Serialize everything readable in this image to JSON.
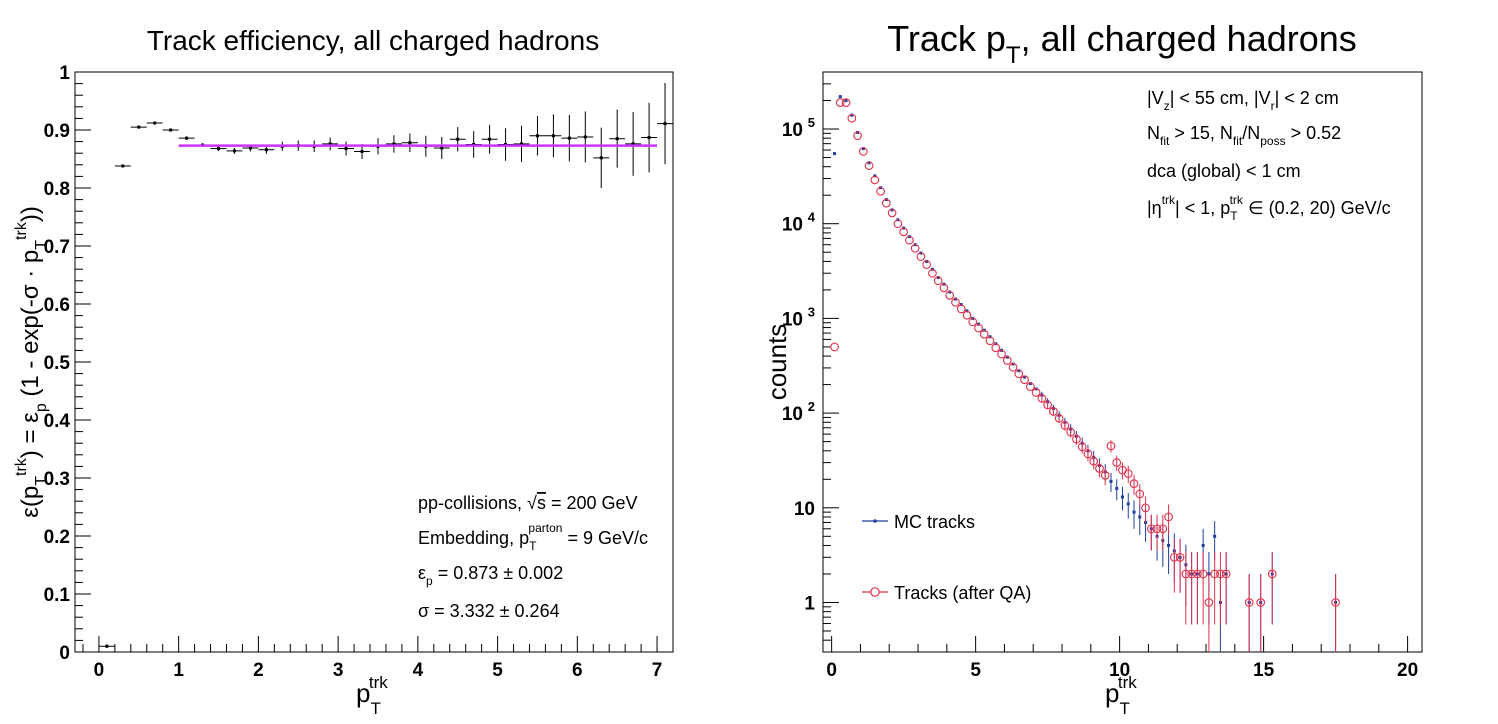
{
  "chart_data": [
    {
      "type": "scatter",
      "title": "Track efficiency, all charged hadrons",
      "xlabel": "p_T^trk",
      "ylabel": "ε(p_T^trk) = ε_p (1 - exp(-σ · p_T^trk))",
      "xlim": [
        -0.3,
        7.2
      ],
      "ylim": [
        0,
        1
      ],
      "x_ticks": [
        0,
        1,
        2,
        3,
        4,
        5,
        6,
        7
      ],
      "y_ticks": [
        0,
        0.1,
        0.2,
        0.3,
        0.4,
        0.5,
        0.6,
        0.7,
        0.8,
        0.9,
        1
      ],
      "grid": false,
      "points": [
        {
          "x": 0.1,
          "y": 0.01,
          "xerr": 0.1,
          "yerr": 0.003
        },
        {
          "x": 0.3,
          "y": 0.838,
          "xerr": 0.1,
          "yerr": 0.002
        },
        {
          "x": 0.5,
          "y": 0.905,
          "xerr": 0.1,
          "yerr": 0.002
        },
        {
          "x": 0.7,
          "y": 0.912,
          "xerr": 0.1,
          "yerr": 0.002
        },
        {
          "x": 0.9,
          "y": 0.9,
          "xerr": 0.1,
          "yerr": 0.002
        },
        {
          "x": 1.1,
          "y": 0.886,
          "xerr": 0.1,
          "yerr": 0.003
        },
        {
          "x": 1.3,
          "y": 0.874,
          "xerr": 0.1,
          "yerr": 0.003
        },
        {
          "x": 1.5,
          "y": 0.868,
          "xerr": 0.1,
          "yerr": 0.004
        },
        {
          "x": 1.7,
          "y": 0.864,
          "xerr": 0.1,
          "yerr": 0.005
        },
        {
          "x": 1.9,
          "y": 0.869,
          "xerr": 0.1,
          "yerr": 0.006
        },
        {
          "x": 2.1,
          "y": 0.866,
          "xerr": 0.1,
          "yerr": 0.007
        },
        {
          "x": 2.3,
          "y": 0.872,
          "xerr": 0.1,
          "yerr": 0.008
        },
        {
          "x": 2.5,
          "y": 0.873,
          "xerr": 0.1,
          "yerr": 0.009
        },
        {
          "x": 2.7,
          "y": 0.872,
          "xerr": 0.1,
          "yerr": 0.01
        },
        {
          "x": 2.9,
          "y": 0.876,
          "xerr": 0.1,
          "yerr": 0.011
        },
        {
          "x": 3.1,
          "y": 0.868,
          "xerr": 0.1,
          "yerr": 0.012
        },
        {
          "x": 3.3,
          "y": 0.863,
          "xerr": 0.1,
          "yerr": 0.013
        },
        {
          "x": 3.5,
          "y": 0.872,
          "xerr": 0.1,
          "yerr": 0.014
        },
        {
          "x": 3.7,
          "y": 0.876,
          "xerr": 0.1,
          "yerr": 0.015
        },
        {
          "x": 3.9,
          "y": 0.878,
          "xerr": 0.1,
          "yerr": 0.016
        },
        {
          "x": 4.1,
          "y": 0.872,
          "xerr": 0.1,
          "yerr": 0.018
        },
        {
          "x": 4.3,
          "y": 0.869,
          "xerr": 0.1,
          "yerr": 0.019
        },
        {
          "x": 4.5,
          "y": 0.884,
          "xerr": 0.1,
          "yerr": 0.021
        },
        {
          "x": 4.7,
          "y": 0.875,
          "xerr": 0.1,
          "yerr": 0.023
        },
        {
          "x": 4.9,
          "y": 0.884,
          "xerr": 0.1,
          "yerr": 0.025
        },
        {
          "x": 5.1,
          "y": 0.875,
          "xerr": 0.1,
          "yerr": 0.028
        },
        {
          "x": 5.3,
          "y": 0.876,
          "xerr": 0.1,
          "yerr": 0.031
        },
        {
          "x": 5.5,
          "y": 0.89,
          "xerr": 0.1,
          "yerr": 0.034
        },
        {
          "x": 5.7,
          "y": 0.89,
          "xerr": 0.1,
          "yerr": 0.037
        },
        {
          "x": 5.9,
          "y": 0.886,
          "xerr": 0.1,
          "yerr": 0.04
        },
        {
          "x": 6.1,
          "y": 0.888,
          "xerr": 0.1,
          "yerr": 0.044
        },
        {
          "x": 6.3,
          "y": 0.852,
          "xerr": 0.1,
          "yerr": 0.052
        },
        {
          "x": 6.5,
          "y": 0.885,
          "xerr": 0.1,
          "yerr": 0.05
        },
        {
          "x": 6.7,
          "y": 0.876,
          "xerr": 0.1,
          "yerr": 0.055
        },
        {
          "x": 6.9,
          "y": 0.887,
          "xerr": 0.1,
          "yerr": 0.06
        },
        {
          "x": 7.1,
          "y": 0.911,
          "xerr": 0.1,
          "yerr": 0.07
        }
      ],
      "fit": {
        "x_start": 1,
        "x_end": 7,
        "value": 0.873,
        "color": "#cc33ff"
      },
      "annotations": [
        "pp-collisions, √s = 200 GeV",
        "Embedding, p_T^parton = 9 GeV/c",
        "ε_p = 0.873 ± 0.002",
        "σ = 3.332 ± 0.264"
      ]
    },
    {
      "type": "scatter",
      "title": "Track p_T, all charged hadrons",
      "xlabel": "p_T^trk",
      "ylabel": "counts",
      "xlim": [
        -0.3,
        20.5
      ],
      "ylim": [
        0.3,
        400000
      ],
      "log_y": true,
      "x_ticks": [
        0,
        5,
        10,
        15,
        20
      ],
      "y_ticks": [
        "1",
        "10",
        "10^2",
        "10^3",
        "10^4",
        "10^5"
      ],
      "grid": false,
      "legend_position": "bottom-left",
      "annotations": [
        "|V_z| < 55 cm, |V_r| < 2 cm",
        "N_fit > 15, N_fit/N_poss > 0.52",
        "dca (global) < 1 cm",
        "|η^trk| < 1, p_T^trk ∈ (0.2, 20) GeV/c"
      ],
      "series": [
        {
          "name": "MC tracks",
          "color": "#1f3e9e",
          "marker": "dot",
          "points": [
            [
              0.1,
              55000
            ],
            [
              0.3,
              220000
            ],
            [
              0.5,
              200000
            ],
            [
              0.7,
              140000
            ],
            [
              0.9,
              92000
            ],
            [
              1.1,
              62000
            ],
            [
              1.3,
              44000
            ],
            [
              1.5,
              32000
            ],
            [
              1.7,
              24000
            ],
            [
              1.9,
              18000
            ],
            [
              2.1,
              14000
            ],
            [
              2.3,
              11000
            ],
            [
              2.5,
              9000
            ],
            [
              2.7,
              7300
            ],
            [
              2.9,
              6000
            ],
            [
              3.1,
              4900
            ],
            [
              3.3,
              4000
            ],
            [
              3.5,
              3300
            ],
            [
              3.7,
              2700
            ],
            [
              3.9,
              2300
            ],
            [
              4.1,
              1900
            ],
            [
              4.3,
              1600
            ],
            [
              4.5,
              1400
            ],
            [
              4.7,
              1200
            ],
            [
              4.9,
              1000
            ],
            [
              5.1,
              870
            ],
            [
              5.3,
              750
            ],
            [
              5.5,
              640
            ],
            [
              5.7,
              540
            ],
            [
              5.9,
              460
            ],
            [
              6.1,
              390
            ],
            [
              6.3,
              330
            ],
            [
              6.5,
              280
            ],
            [
              6.7,
              240
            ],
            [
              6.9,
              205
            ],
            [
              7.1,
              180
            ],
            [
              7.3,
              155
            ],
            [
              7.5,
              132
            ],
            [
              7.7,
              112
            ],
            [
              7.9,
              95
            ],
            [
              8.1,
              80
            ],
            [
              8.3,
              68
            ],
            [
              8.5,
              57
            ],
            [
              8.7,
              48
            ],
            [
              8.9,
              40
            ],
            [
              9.1,
              34
            ],
            [
              9.3,
              28
            ],
            [
              9.5,
              24
            ],
            [
              9.7,
              19
            ],
            [
              9.9,
              16
            ],
            [
              10.1,
              13
            ],
            [
              10.3,
              11
            ],
            [
              10.5,
              9
            ],
            [
              10.7,
              8
            ],
            [
              10.9,
              7
            ],
            [
              11.1,
              6
            ],
            [
              11.3,
              5
            ],
            [
              11.5,
              4.5
            ],
            [
              11.7,
              4
            ],
            [
              11.9,
              3.5
            ],
            [
              12.1,
              3
            ],
            [
              12.3,
              2.5
            ],
            [
              12.5,
              2
            ],
            [
              12.7,
              2
            ],
            [
              12.9,
              4
            ],
            [
              13.1,
              2
            ],
            [
              13.3,
              5
            ],
            [
              13.5,
              1
            ],
            [
              13.7,
              2
            ],
            [
              14.5,
              1
            ],
            [
              14.9,
              1
            ],
            [
              15.3,
              2
            ],
            [
              17.5,
              1
            ]
          ]
        },
        {
          "name": "Tracks (after QA)",
          "color": "#e0304a",
          "marker": "open-circle",
          "points": [
            [
              0.1,
              500
            ],
            [
              0.3,
              190000
            ],
            [
              0.5,
              190000
            ],
            [
              0.7,
              130000
            ],
            [
              0.9,
              85000
            ],
            [
              1.1,
              58000
            ],
            [
              1.3,
              41000
            ],
            [
              1.5,
              29000
            ],
            [
              1.7,
              22000
            ],
            [
              1.9,
              16500
            ],
            [
              2.1,
              13000
            ],
            [
              2.3,
              10000
            ],
            [
              2.5,
              8200
            ],
            [
              2.7,
              6700
            ],
            [
              2.9,
              5500
            ],
            [
              3.1,
              4500
            ],
            [
              3.3,
              3700
            ],
            [
              3.5,
              3000
            ],
            [
              3.7,
              2500
            ],
            [
              3.9,
              2100
            ],
            [
              4.1,
              1750
            ],
            [
              4.3,
              1480
            ],
            [
              4.5,
              1260
            ],
            [
              4.7,
              1080
            ],
            [
              4.9,
              920
            ],
            [
              5.1,
              790
            ],
            [
              5.3,
              680
            ],
            [
              5.5,
              580
            ],
            [
              5.7,
              490
            ],
            [
              5.9,
              420
            ],
            [
              6.1,
              360
            ],
            [
              6.3,
              305
            ],
            [
              6.5,
              260
            ],
            [
              6.7,
              225
            ],
            [
              6.9,
              190
            ],
            [
              7.1,
              165
            ],
            [
              7.3,
              143
            ],
            [
              7.5,
              122
            ],
            [
              7.7,
              104
            ],
            [
              7.9,
              88
            ],
            [
              8.1,
              74
            ],
            [
              8.3,
              63
            ],
            [
              8.5,
              53
            ],
            [
              8.7,
              44
            ],
            [
              8.9,
              37
            ],
            [
              9.1,
              31
            ],
            [
              9.3,
              26
            ],
            [
              9.5,
              22
            ],
            [
              9.7,
              45
            ],
            [
              9.9,
              30
            ],
            [
              10.1,
              25
            ],
            [
              10.3,
              23
            ],
            [
              10.5,
              18
            ],
            [
              10.7,
              14
            ],
            [
              10.9,
              10
            ],
            [
              11.1,
              6
            ],
            [
              11.3,
              6
            ],
            [
              11.5,
              6
            ],
            [
              11.7,
              8
            ],
            [
              11.9,
              3
            ],
            [
              12.1,
              3
            ],
            [
              12.3,
              2
            ],
            [
              12.5,
              2
            ],
            [
              12.7,
              2
            ],
            [
              12.9,
              2
            ],
            [
              13.1,
              1
            ],
            [
              13.3,
              2
            ],
            [
              13.5,
              2
            ],
            [
              13.7,
              2
            ],
            [
              14.5,
              1
            ],
            [
              14.9,
              1
            ],
            [
              15.3,
              2
            ],
            [
              17.5,
              1
            ]
          ]
        }
      ]
    }
  ]
}
